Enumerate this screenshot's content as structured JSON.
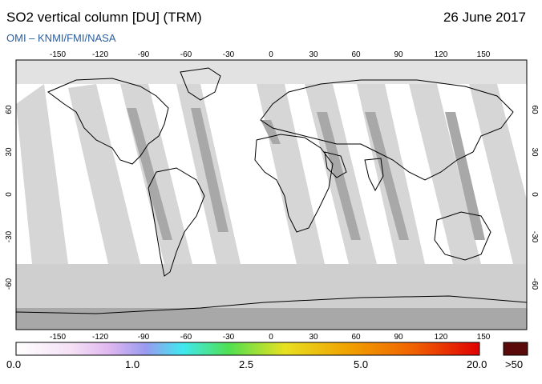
{
  "header": {
    "title": "SO2 vertical column [DU] (TRM)",
    "date": "26 June 2017",
    "credit": "OMI  –  KNMI/FMI/NASA"
  },
  "map": {
    "lon_ticks": [
      "-150",
      "-120",
      "-90",
      "-60",
      "-30",
      "0",
      "30",
      "60",
      "90",
      "120",
      "150"
    ],
    "lat_ticks": [
      "60",
      "30",
      "0",
      "-30",
      "-60"
    ],
    "colors": {
      "background": "#ffffff",
      "land_outline": "#000000",
      "swath_light": "#d4d4d4",
      "swath_dark": "#a6a6a6",
      "polar": "#c8c8c8"
    }
  },
  "colorbar": {
    "labels": [
      "0.0",
      "1.0",
      "2.5",
      "5.0",
      "20.0"
    ],
    "overflow_label": ">50",
    "overflow_color": "#5a0a0a",
    "gradient": [
      "#ffffff",
      "#f4d8f4",
      "#c8a0e8",
      "#8080e0",
      "#40e0f0",
      "#40e040",
      "#e0e020",
      "#f0a000",
      "#f06000",
      "#e00000"
    ]
  }
}
